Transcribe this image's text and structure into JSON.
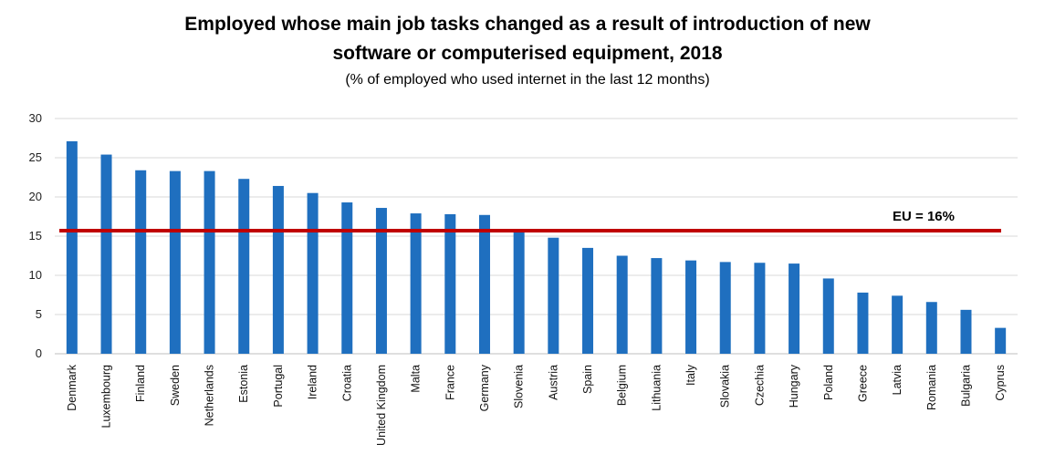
{
  "chart_data": {
    "type": "bar",
    "title_line1": "Employed whose main job tasks changed as a result of introduction  of new",
    "title_line2": "software or computerised  equipment, 2018",
    "subtitle": "(% of employed who used internet in the last 12 months)",
    "xlabel": "",
    "ylabel": "",
    "ylim": [
      0,
      30
    ],
    "yticks": [
      0,
      5,
      10,
      15,
      20,
      25,
      30
    ],
    "grid": true,
    "bar_color": "#1f6fbf",
    "reference_line": {
      "label": "EU = 16%",
      "value": 15.7,
      "color": "#c00000"
    },
    "categories": [
      "Denmark",
      "Luxembourg",
      "Finland",
      "Sweden",
      "Netherlands",
      "Estonia",
      "Portugal",
      "Ireland",
      "Croatia",
      "United Kingdom",
      "Malta",
      "France",
      "Germany",
      "Slovenia",
      "Austria",
      "Spain",
      "Belgium",
      "Lithuania",
      "Italy",
      "Slovakia",
      "Czechia",
      "Hungary",
      "Poland",
      "Greece",
      "Latvia",
      "Romania",
      "Bulgaria",
      "Cyprus"
    ],
    "values": [
      27.1,
      25.4,
      23.4,
      23.3,
      23.3,
      22.3,
      21.4,
      20.5,
      19.3,
      18.6,
      17.9,
      17.8,
      17.7,
      15.7,
      14.8,
      13.5,
      12.5,
      12.2,
      11.9,
      11.7,
      11.6,
      11.5,
      9.6,
      7.8,
      7.4,
      6.6,
      5.6,
      3.3
    ]
  }
}
